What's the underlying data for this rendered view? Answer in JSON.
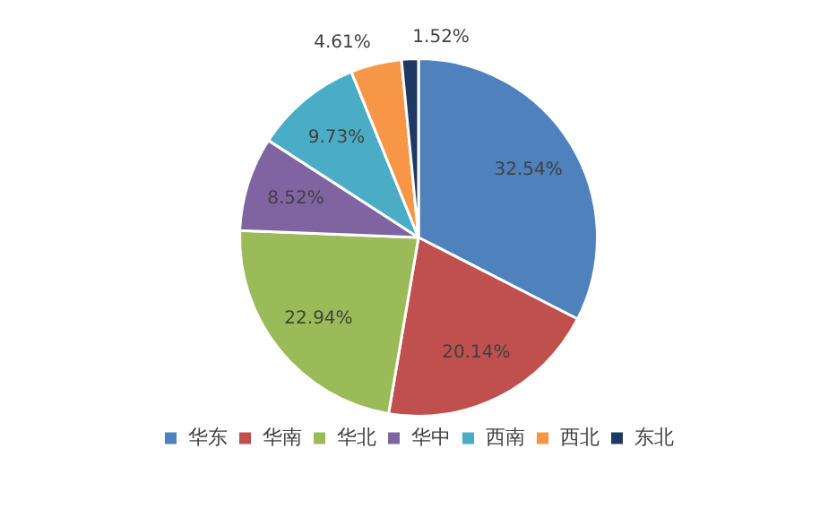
{
  "chart_data": {
    "type": "pie",
    "categories": [
      "华东",
      "华南",
      "华北",
      "华中",
      "西南",
      "西北",
      "东北"
    ],
    "values": [
      32.54,
      20.14,
      22.94,
      8.52,
      9.73,
      4.61,
      1.52
    ],
    "value_labels": [
      "32.54%",
      "20.14%",
      "22.94%",
      "8.52%",
      "9.73%",
      "4.61%",
      "1.52%"
    ],
    "colors": [
      "#4f81bd",
      "#c0504d",
      "#9bbb59",
      "#8064a2",
      "#4bacc6",
      "#f79646",
      "#1f3864"
    ],
    "legend": "bottom"
  }
}
